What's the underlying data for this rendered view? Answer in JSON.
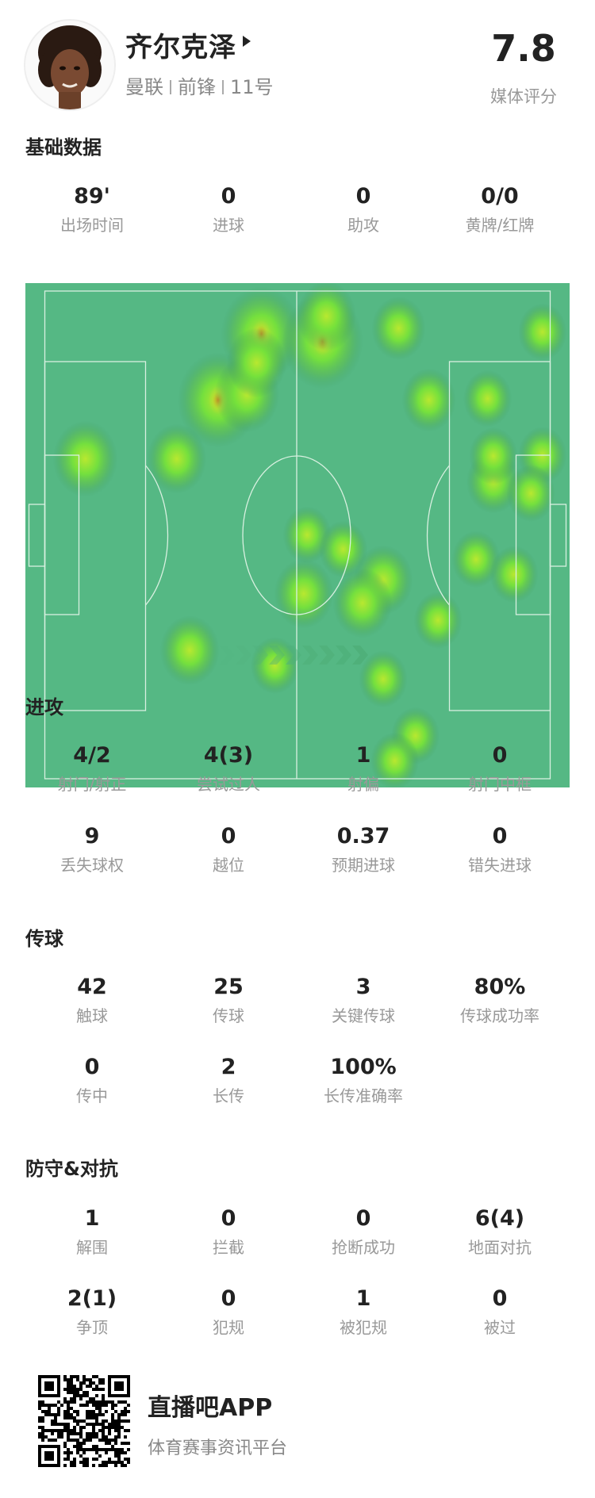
{
  "player": {
    "name": "齐尔克泽",
    "team": "曼联",
    "position": "前锋",
    "number": "11号",
    "rating": "7.8",
    "rating_label": "媒体评分"
  },
  "basic": {
    "title": "基础数据",
    "stats": [
      {
        "value": "89'",
        "label": "出场时间"
      },
      {
        "value": "0",
        "label": "进球"
      },
      {
        "value": "0",
        "label": "助攻"
      },
      {
        "value": "0/0",
        "label": "黄牌/红牌"
      }
    ]
  },
  "heatmap": {
    "pitch_color": "#55b884",
    "line_color": "#d8f0e0",
    "attack_direction": "right",
    "touch_zones_pitch_m": [
      {
        "x": 8.4,
        "y": 23.4,
        "w": 1.2
      },
      {
        "x": 27.4,
        "y": 23.4,
        "w": 1.1
      },
      {
        "x": 36,
        "y": 15.2,
        "w": 1.5
      },
      {
        "x": 45,
        "y": 6,
        "w": 1.5
      },
      {
        "x": 42,
        "y": 14.4,
        "w": 1.2
      },
      {
        "x": 44,
        "y": 10,
        "w": 1.1
      },
      {
        "x": 57.7,
        "y": 7,
        "w": 1.5
      },
      {
        "x": 58.5,
        "y": 3.5,
        "w": 1.1
      },
      {
        "x": 73.5,
        "y": 5.2,
        "w": 1.0
      },
      {
        "x": 79.8,
        "y": 15.2,
        "w": 1.0
      },
      {
        "x": 92,
        "y": 15,
        "w": 0.9
      },
      {
        "x": 103.4,
        "y": 5.7,
        "w": 0.9
      },
      {
        "x": 93.2,
        "y": 26.6,
        "w": 1.0
      },
      {
        "x": 93.2,
        "y": 23,
        "w": 0.9
      },
      {
        "x": 103.4,
        "y": 22.9,
        "w": 0.9
      },
      {
        "x": 101,
        "y": 28.2,
        "w": 0.9
      },
      {
        "x": 89.6,
        "y": 37.4,
        "w": 0.9
      },
      {
        "x": 97.5,
        "y": 39.5,
        "w": 0.9
      },
      {
        "x": 54.5,
        "y": 34,
        "w": 0.9
      },
      {
        "x": 62,
        "y": 36,
        "w": 0.9
      },
      {
        "x": 53.8,
        "y": 42.2,
        "w": 1.1
      },
      {
        "x": 70.3,
        "y": 40.3,
        "w": 1.1
      },
      {
        "x": 66,
        "y": 43.5,
        "w": 1.1
      },
      {
        "x": 81.7,
        "y": 45.9,
        "w": 0.9
      },
      {
        "x": 30.1,
        "y": 50.1,
        "w": 1.1
      },
      {
        "x": 47.8,
        "y": 52.2,
        "w": 0.9
      },
      {
        "x": 70.3,
        "y": 54.1,
        "w": 0.9
      },
      {
        "x": 77,
        "y": 62,
        "w": 0.9
      },
      {
        "x": 72.7,
        "y": 65.5,
        "w": 0.9
      }
    ]
  },
  "attack": {
    "title": "进攻",
    "stats": [
      {
        "value": "4/2",
        "label": "射门/射正"
      },
      {
        "value": "4(3)",
        "label": "尝试过人"
      },
      {
        "value": "1",
        "label": "射偏"
      },
      {
        "value": "0",
        "label": "射门中框"
      },
      {
        "value": "9",
        "label": "丢失球权"
      },
      {
        "value": "0",
        "label": "越位"
      },
      {
        "value": "0.37",
        "label": "预期进球"
      },
      {
        "value": "0",
        "label": "错失进球"
      }
    ]
  },
  "passing": {
    "title": "传球",
    "stats": [
      {
        "value": "42",
        "label": "触球"
      },
      {
        "value": "25",
        "label": "传球"
      },
      {
        "value": "3",
        "label": "关键传球"
      },
      {
        "value": "80%",
        "label": "传球成功率"
      },
      {
        "value": "0",
        "label": "传中"
      },
      {
        "value": "2",
        "label": "长传"
      },
      {
        "value": "100%",
        "label": "长传准确率"
      }
    ]
  },
  "defense": {
    "title": "防守&对抗",
    "stats": [
      {
        "value": "1",
        "label": "解围"
      },
      {
        "value": "0",
        "label": "拦截"
      },
      {
        "value": "0",
        "label": "抢断成功"
      },
      {
        "value": "6(4)",
        "label": "地面对抗"
      },
      {
        "value": "2(1)",
        "label": "争顶"
      },
      {
        "value": "0",
        "label": "犯规"
      },
      {
        "value": "1",
        "label": "被犯规"
      },
      {
        "value": "0",
        "label": "被过"
      }
    ]
  },
  "footer": {
    "app_name": "直播吧APP",
    "tagline": "体育赛事资讯平台"
  }
}
